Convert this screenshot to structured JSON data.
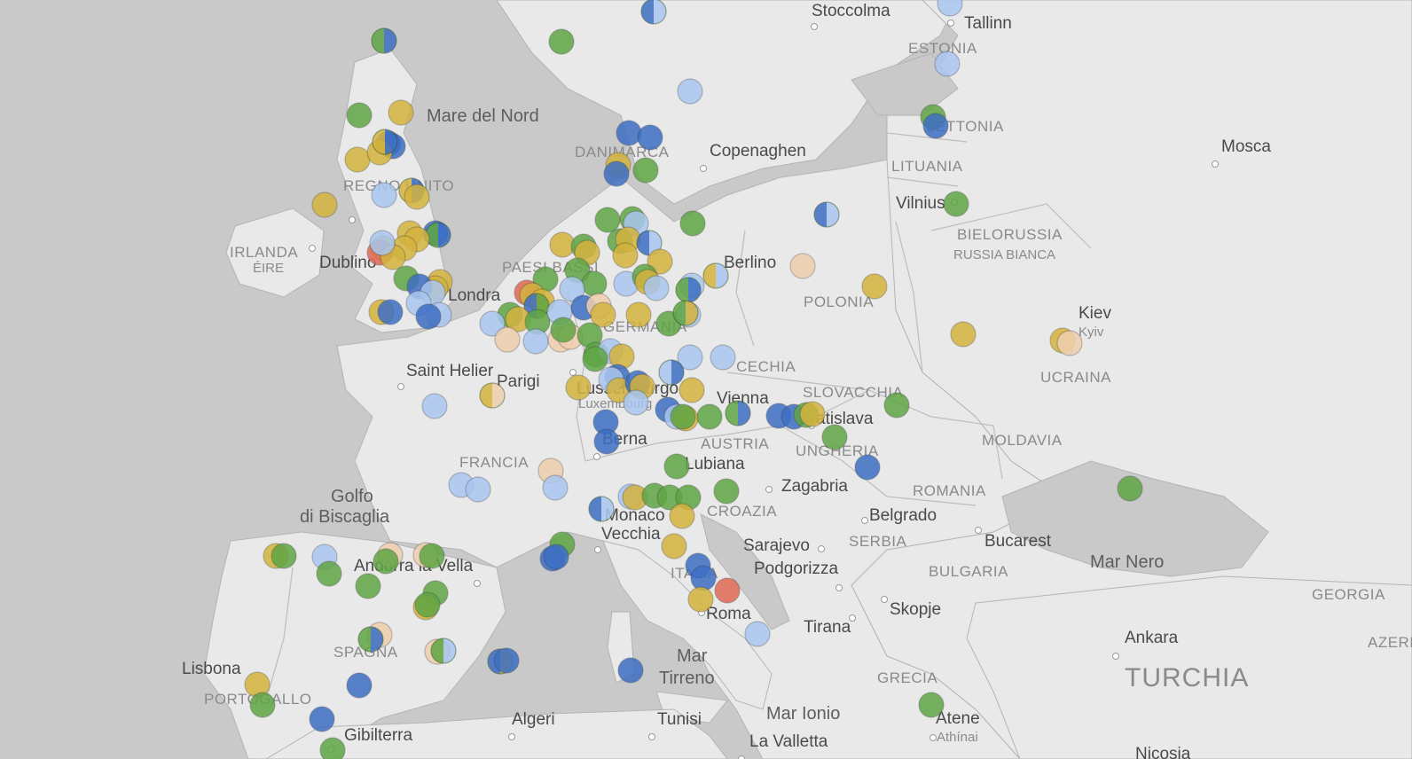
{
  "colors": {
    "water": "#c9c9c9",
    "land": "#e9e9e9",
    "border": "#b4b4b4",
    "marker_green": "#5fa544",
    "marker_gold": "#d4b33e",
    "marker_blue": "#3d6fc4",
    "marker_lightblue": "#a9c6ef",
    "marker_peach": "#f0cfae",
    "marker_red": "#e06a55"
  },
  "labels": [
    {
      "id": "stoccolma",
      "text": "Stoccolma",
      "kind": "city"
    },
    {
      "id": "tallinn",
      "text": "Tallinn",
      "kind": "city"
    },
    {
      "id": "estonia",
      "text": "ESTONIA",
      "kind": "country"
    },
    {
      "id": "mare-del-nord",
      "text": "Mare del Nord",
      "kind": "sea"
    },
    {
      "id": "lettonia",
      "text": "LETTONIA",
      "kind": "country"
    },
    {
      "id": "mosca",
      "text": "Mosca",
      "kind": "city"
    },
    {
      "id": "danimarca",
      "text": "DANIMARCA",
      "kind": "country"
    },
    {
      "id": "copenaghen",
      "text": "Copenaghen",
      "kind": "city"
    },
    {
      "id": "lituania",
      "text": "LITUANIA",
      "kind": "country"
    },
    {
      "id": "regno-unito",
      "text": "REGNO UNITO",
      "kind": "country"
    },
    {
      "id": "vilnius",
      "text": "Vilnius",
      "kind": "city"
    },
    {
      "id": "bielorussia",
      "text": "BIELORUSSIA",
      "kind": "country"
    },
    {
      "id": "russia-bianca",
      "text": "RUSSIA BIANCA",
      "kind": "country-sub"
    },
    {
      "id": "irlanda",
      "text": "IRLANDA",
      "kind": "country"
    },
    {
      "id": "eire",
      "text": "ÉIRE",
      "kind": "country-sub"
    },
    {
      "id": "dublino",
      "text": "Dublino",
      "kind": "city"
    },
    {
      "id": "paesi-bassi",
      "text": "PAESI BASSI",
      "kind": "country"
    },
    {
      "id": "berlino",
      "text": "Berlino",
      "kind": "city"
    },
    {
      "id": "polonia",
      "text": "POLONIA",
      "kind": "country"
    },
    {
      "id": "londra",
      "text": "Londra",
      "kind": "city"
    },
    {
      "id": "germania",
      "text": "GERMANIA",
      "kind": "country"
    },
    {
      "id": "kiev",
      "text": "Kiev",
      "kind": "city"
    },
    {
      "id": "kyiv",
      "text": "Kyiv",
      "kind": "country-sub"
    },
    {
      "id": "ucraina",
      "text": "UCRAINA",
      "kind": "country"
    },
    {
      "id": "saint-helier",
      "text": "Saint Helier",
      "kind": "city"
    },
    {
      "id": "parigi",
      "text": "Parigi",
      "kind": "city"
    },
    {
      "id": "lussemburgo",
      "text": "Lussemburgo",
      "kind": "city"
    },
    {
      "id": "luxembourg",
      "text": "Luxembourg",
      "kind": "country-sub"
    },
    {
      "id": "cechia",
      "text": "CECHIA",
      "kind": "country"
    },
    {
      "id": "vienna",
      "text": "Vienna",
      "kind": "city"
    },
    {
      "id": "slovacchia",
      "text": "SLOVACCHIA",
      "kind": "country"
    },
    {
      "id": "bratislava",
      "text": "Bratislava",
      "kind": "city"
    },
    {
      "id": "austria",
      "text": "AUSTRIA",
      "kind": "country"
    },
    {
      "id": "moldavia",
      "text": "MOLDAVIA",
      "kind": "country"
    },
    {
      "id": "ungheria",
      "text": "UNGHERIA",
      "kind": "country"
    },
    {
      "id": "berna",
      "text": "Berna",
      "kind": "city"
    },
    {
      "id": "francia",
      "text": "FRANCIA",
      "kind": "country"
    },
    {
      "id": "lubiana",
      "text": "Lubiana",
      "kind": "city"
    },
    {
      "id": "zagabria",
      "text": "Zagabria",
      "kind": "city"
    },
    {
      "id": "romania",
      "text": "ROMANIA",
      "kind": "country"
    },
    {
      "id": "golfo",
      "text": "Golfo",
      "kind": "sea"
    },
    {
      "id": "di-biscaglia",
      "text": "di Biscaglia",
      "kind": "sea"
    },
    {
      "id": "croazia",
      "text": "CROAZIA",
      "kind": "country"
    },
    {
      "id": "belgrado",
      "text": "Belgrado",
      "kind": "city"
    },
    {
      "id": "monaco",
      "text": "Monaco",
      "kind": "city"
    },
    {
      "id": "vecchia",
      "text": "Vecchia",
      "kind": "city"
    },
    {
      "id": "bucarest",
      "text": "Bucarest",
      "kind": "city"
    },
    {
      "id": "sarajevo",
      "text": "Sarajevo",
      "kind": "city"
    },
    {
      "id": "serbia",
      "text": "SERBIA",
      "kind": "country"
    },
    {
      "id": "mar-nero",
      "text": "Mar Nero",
      "kind": "sea"
    },
    {
      "id": "andorra",
      "text": "Andorra la Vella",
      "kind": "city"
    },
    {
      "id": "italia",
      "text": "ITALIA",
      "kind": "country"
    },
    {
      "id": "podgorizza",
      "text": "Podgorizza",
      "kind": "city"
    },
    {
      "id": "bulgaria",
      "text": "BULGARIA",
      "kind": "country"
    },
    {
      "id": "georgia",
      "text": "GEORGIA",
      "kind": "country"
    },
    {
      "id": "skopje",
      "text": "Skopje",
      "kind": "city"
    },
    {
      "id": "roma",
      "text": "Roma",
      "kind": "city"
    },
    {
      "id": "tirana",
      "text": "Tirana",
      "kind": "city"
    },
    {
      "id": "ankara",
      "text": "Ankara",
      "kind": "city"
    },
    {
      "id": "azerb",
      "text": "AZERB",
      "kind": "country"
    },
    {
      "id": "spagna",
      "text": "SPAGNA",
      "kind": "country"
    },
    {
      "id": "mar-tirreno-1",
      "text": "Mar",
      "kind": "sea"
    },
    {
      "id": "mar-tirreno-2",
      "text": "Tirreno",
      "kind": "sea"
    },
    {
      "id": "lisbona",
      "text": "Lisbona",
      "kind": "city"
    },
    {
      "id": "turchia",
      "text": "TURCHIA",
      "kind": "big-country"
    },
    {
      "id": "grecia",
      "text": "GRECIA",
      "kind": "country"
    },
    {
      "id": "portogallo",
      "text": "PORTOGALLO",
      "kind": "country"
    },
    {
      "id": "algeri",
      "text": "Algeri",
      "kind": "city"
    },
    {
      "id": "tunisi",
      "text": "Tunisi",
      "kind": "city"
    },
    {
      "id": "mar-ionio",
      "text": "Mar Ionio",
      "kind": "sea"
    },
    {
      "id": "atene",
      "text": "Atene",
      "kind": "city"
    },
    {
      "id": "athinai",
      "text": "Athínai",
      "kind": "country-sub"
    },
    {
      "id": "gibilterra",
      "text": "Gibilterra",
      "kind": "city"
    },
    {
      "id": "la-valletta",
      "text": "La Valletta",
      "kind": "city"
    },
    {
      "id": "nicosia",
      "text": "Nicosia",
      "kind": "city"
    }
  ]
}
